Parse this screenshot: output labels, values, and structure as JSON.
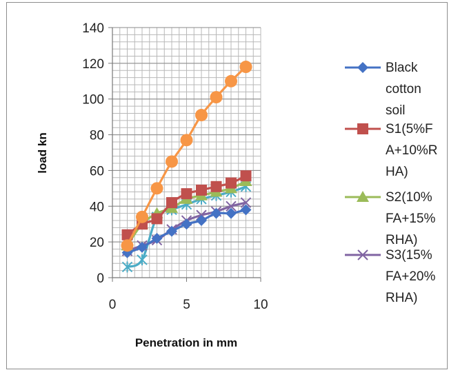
{
  "chart_data": {
    "type": "line",
    "title": "",
    "xlabel": "Penetration in mm",
    "ylabel": "load kn",
    "xlim": [
      0,
      10
    ],
    "ylim": [
      0,
      140
    ],
    "xticks": [
      0,
      5,
      10
    ],
    "yticks": [
      0,
      20,
      40,
      60,
      80,
      100,
      120,
      140
    ],
    "grid": true,
    "legend_position": "right",
    "x": [
      1,
      2,
      3,
      4,
      5,
      6,
      7,
      8,
      9
    ],
    "series": [
      {
        "name": "Black cotton soil",
        "legend_lines": [
          "Black",
          "cotton",
          "soil"
        ],
        "color": "#4472c4",
        "marker": "diamond",
        "values": [
          14,
          17,
          22,
          26,
          30,
          32,
          36,
          36,
          38
        ]
      },
      {
        "name": "S1(5%FA+10%RHA)",
        "legend_lines": [
          "S1(5%F",
          "A+10%R",
          "HA)"
        ],
        "color": "#c0504d",
        "marker": "square",
        "values": [
          24,
          30,
          33,
          42,
          47,
          49,
          51,
          53,
          57
        ]
      },
      {
        "name": "S2(10%FA+15%RHA)",
        "legend_lines": [
          "S2(10%",
          "FA+15%",
          "RHA)"
        ],
        "color": "#9bbb59",
        "marker": "triangle",
        "values": [
          18,
          30,
          36,
          39,
          44,
          46,
          48,
          50,
          54
        ]
      },
      {
        "name": "S3(15%FA+20%RHA)",
        "legend_lines": [
          "S3(15%",
          "FA+20%",
          "RHA)"
        ],
        "color": "#8064a2",
        "marker": "x",
        "values": [
          15,
          18,
          21,
          27,
          32,
          35,
          37,
          40,
          42
        ]
      },
      {
        "name": "",
        "color": "#4bacc6",
        "marker": "asterisk",
        "values": [
          6,
          10,
          34,
          38,
          41,
          44,
          46,
          48,
          51
        ]
      },
      {
        "name": "",
        "color": "#f79646",
        "marker": "circle",
        "values": [
          18,
          34,
          50,
          65,
          77,
          91,
          101,
          110,
          118
        ]
      }
    ]
  }
}
